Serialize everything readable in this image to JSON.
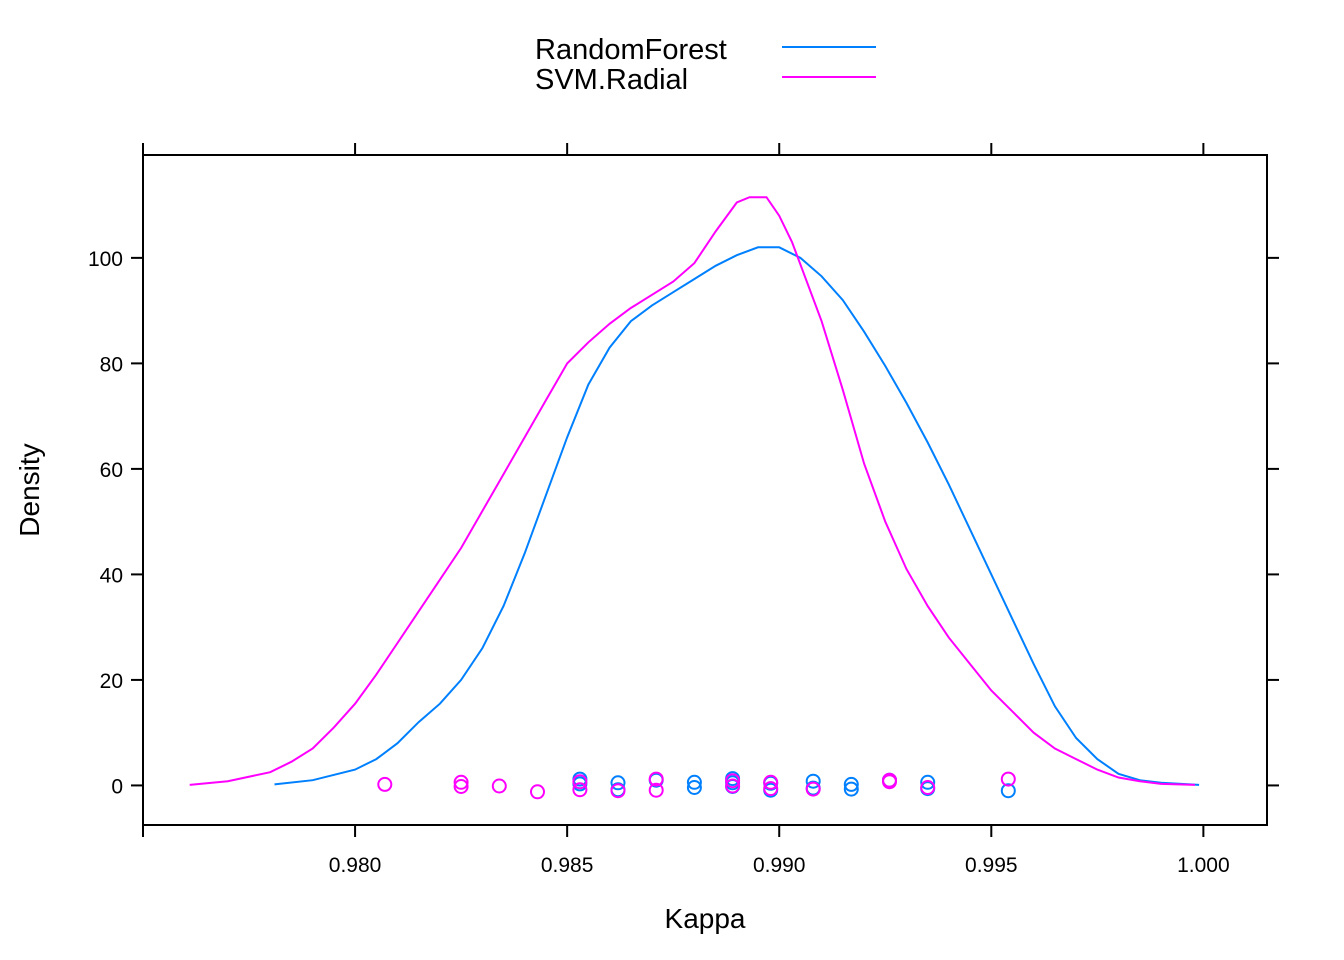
{
  "chart_data": {
    "type": "line",
    "title": "",
    "xlabel": "Kappa",
    "ylabel": "Density",
    "xlim": [
      0.975,
      1.0015
    ],
    "ylim": [
      -7.5,
      119.5
    ],
    "x_ticks": [
      0.98,
      0.985,
      0.99,
      0.995,
      1.0
    ],
    "x_tick_labels": [
      "0.980",
      "0.985",
      "0.990",
      "0.995",
      "1.000"
    ],
    "y_ticks": [
      0,
      20,
      40,
      60,
      80,
      100
    ],
    "y_tick_labels": [
      "0",
      "20",
      "40",
      "60",
      "80",
      "100"
    ],
    "grid": false,
    "legend_position": "top",
    "series": [
      {
        "name": "RandomForest",
        "color": "#0080ff",
        "x": [
          0.9781,
          0.979,
          0.98,
          0.9805,
          0.981,
          0.9815,
          0.982,
          0.9825,
          0.983,
          0.9835,
          0.984,
          0.9845,
          0.985,
          0.9855,
          0.986,
          0.9865,
          0.987,
          0.9875,
          0.988,
          0.9885,
          0.989,
          0.9895,
          0.99,
          0.9905,
          0.991,
          0.9915,
          0.992,
          0.9925,
          0.993,
          0.9935,
          0.994,
          0.9945,
          0.995,
          0.9955,
          0.996,
          0.9965,
          0.997,
          0.9975,
          0.998,
          0.9985,
          0.999,
          0.9999
        ],
        "y": [
          0.2,
          1,
          3,
          5,
          8,
          12,
          15.5,
          20,
          26,
          34,
          44,
          55,
          66,
          76,
          83,
          88,
          91,
          93.5,
          96,
          98.5,
          100.5,
          102,
          102,
          100,
          96.5,
          92,
          86,
          79.5,
          72.5,
          65,
          57,
          48.5,
          40,
          31.5,
          23,
          15,
          9,
          5,
          2.2,
          1,
          0.5,
          0.1
        ]
      },
      {
        "name": "SVM.Radial",
        "color": "#ff00ff",
        "x": [
          0.9761,
          0.977,
          0.978,
          0.9785,
          0.979,
          0.9795,
          0.98,
          0.9805,
          0.981,
          0.9815,
          0.982,
          0.9825,
          0.983,
          0.9835,
          0.984,
          0.9845,
          0.985,
          0.9855,
          0.986,
          0.9865,
          0.987,
          0.9875,
          0.988,
          0.9885,
          0.989,
          0.9893,
          0.9897,
          0.99,
          0.9903,
          0.991,
          0.9915,
          0.992,
          0.9925,
          0.993,
          0.9935,
          0.994,
          0.9945,
          0.995,
          0.9955,
          0.996,
          0.9965,
          0.997,
          0.9975,
          0.998,
          0.9985,
          0.999,
          0.9998
        ],
        "y": [
          0.1,
          0.8,
          2.5,
          4.5,
          7,
          11,
          15.5,
          21,
          27,
          33,
          39,
          45,
          52,
          59,
          66,
          73,
          80,
          84,
          87.5,
          90.5,
          93,
          95.5,
          99,
          105,
          110.5,
          111.5,
          111.5,
          108,
          103,
          88,
          75,
          61,
          50,
          41,
          34,
          28,
          23,
          18,
          14,
          10,
          7,
          5,
          3,
          1.5,
          0.8,
          0.3,
          0.1
        ]
      }
    ],
    "rug": [
      {
        "name": "RandomForest",
        "color": "#0080ff",
        "x": [
          0.9853,
          0.9853,
          0.9862,
          0.9862,
          0.9871,
          0.988,
          0.988,
          0.9889,
          0.9889,
          0.9889,
          0.9898,
          0.9898,
          0.9908,
          0.9908,
          0.9917,
          0.9917,
          0.9926,
          0.9935,
          0.9935,
          0.9954
        ],
        "y": [
          1.2,
          0.3,
          0.5,
          -0.8,
          1.0,
          0.6,
          -0.4,
          1.3,
          0.5,
          -0.2,
          0.4,
          -0.9,
          0.8,
          -0.5,
          0.2,
          -0.7,
          1.0,
          0.6,
          -0.6,
          -1.0
        ]
      },
      {
        "name": "SVM.Radial",
        "color": "#ff00ff",
        "x": [
          0.9807,
          0.9825,
          0.9825,
          0.9834,
          0.9843,
          0.9853,
          0.9853,
          0.9862,
          0.9871,
          0.9871,
          0.9889,
          0.9889,
          0.9898,
          0.9898,
          0.9908,
          0.9926,
          0.9926,
          0.9935,
          0.9954
        ],
        "y": [
          0.2,
          0.6,
          -0.2,
          -0.1,
          -1.2,
          0.7,
          -0.8,
          -1.0,
          1.2,
          -0.9,
          0.9,
          -0.1,
          0.6,
          -0.6,
          -0.7,
          1.0,
          0.7,
          -0.4,
          1.2
        ]
      }
    ]
  }
}
